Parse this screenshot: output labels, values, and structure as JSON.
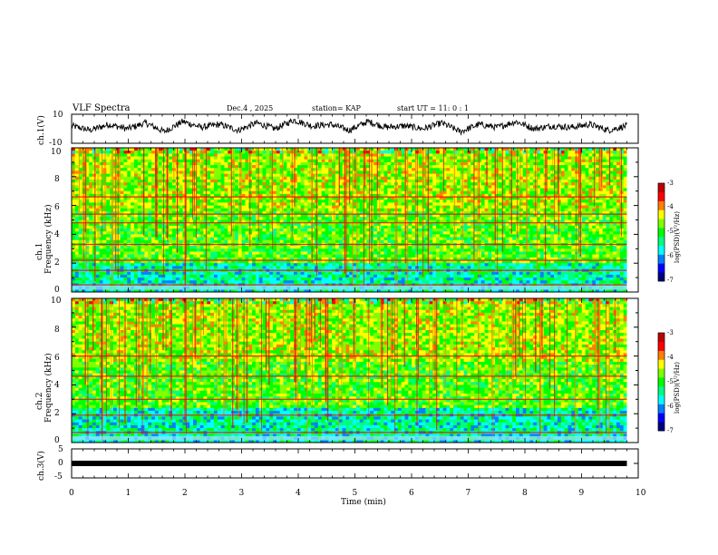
{
  "header": {
    "title": "VLF Spectra",
    "date": "Dec.4 , 2025",
    "station": "station= KAP",
    "start": "start  UT =  11: 0  : 1"
  },
  "colors": {
    "cmap": [
      "#000080",
      "#0000ff",
      "#0080ff",
      "#00ffff",
      "#00ff80",
      "#00ff00",
      "#80ff00",
      "#ffff00",
      "#ff8000",
      "#ff0000",
      "#c00000"
    ],
    "trace": "#000000",
    "axis": "#000000"
  },
  "chart_data": [
    {
      "type": "line",
      "id": "ch1-voltage",
      "ylabel": "ch.1(V)",
      "ylim": [
        -10,
        10
      ],
      "yticks": [
        "10",
        "-10"
      ],
      "x_range": [
        0,
        9.8
      ],
      "description_values": [
        2,
        -1,
        3,
        0,
        4,
        -2,
        5,
        1,
        3,
        -1,
        4,
        0,
        6,
        2,
        3,
        -1,
        5,
        1,
        2,
        0,
        4,
        -2,
        3,
        1,
        5,
        0,
        2,
        1,
        3,
        -1,
        2
      ]
    },
    {
      "type": "heatmap",
      "id": "ch1-spectrogram",
      "ylabel": "ch.1\nFrequency (kHz)",
      "ylim": [
        0,
        10
      ],
      "yticks": [
        "0",
        "2",
        "4",
        "6",
        "8",
        "10"
      ],
      "xlim": [
        0,
        10
      ],
      "data_extent_min": 9.8,
      "colorbar": {
        "label": "log(PSD)(V²/Hz)",
        "range": [
          -7,
          -3
        ],
        "ticks": [
          "-3",
          "-4",
          "-5",
          "-6",
          "-7"
        ]
      },
      "strong_lines_khz": [
        0.5,
        1.5,
        2.2,
        3.3,
        4.8,
        5.4,
        6.6
      ],
      "weak_band_khz": [
        8.0,
        10.0
      ]
    },
    {
      "type": "heatmap",
      "id": "ch2-spectrogram",
      "ylabel": "ch.2\nFrequency (kHz)",
      "ylim": [
        0,
        10
      ],
      "yticks": [
        "0",
        "2",
        "4",
        "6",
        "8",
        "10"
      ],
      "xlim": [
        0,
        10
      ],
      "data_extent_min": 9.8,
      "colorbar": {
        "label": "log(PSD)(V²/Hz)",
        "range": [
          -7,
          -3
        ],
        "ticks": [
          "-3",
          "-4",
          "-5",
          "-6",
          "-7"
        ]
      },
      "strong_lines_khz": [
        0.7,
        1.9,
        3.0,
        4.6,
        6.0
      ],
      "weak_band_khz": [
        7.5,
        10.0
      ]
    },
    {
      "type": "line",
      "id": "ch3-voltage",
      "ylabel": "ch.3(V)",
      "ylim": [
        -5,
        5
      ],
      "yticks": [
        "5",
        "0",
        "-5"
      ],
      "x_range": [
        0,
        9.8
      ],
      "constant_level": 0
    }
  ],
  "xaxis": {
    "label": "Time (min)",
    "ticks": [
      "0",
      "1",
      "2",
      "3",
      "4",
      "5",
      "6",
      "7",
      "8",
      "9",
      "10"
    ]
  }
}
